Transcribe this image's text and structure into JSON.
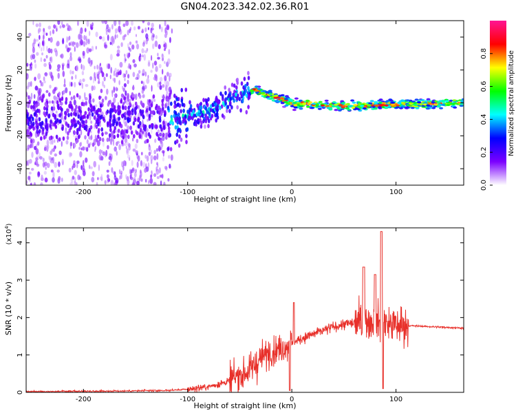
{
  "page": {
    "title": "GN04.2023.342.02.36.R01"
  },
  "chart_data": [
    {
      "type": "heatmap",
      "title": "GN04.2023.342.02.36.R01",
      "xlabel": "Height of straight line (km)",
      "ylabel": "Frequency (Hz)",
      "xlim": [
        -255,
        165
      ],
      "ylim": [
        -50,
        50
      ],
      "x_ticks": [
        -200,
        -100,
        0,
        100
      ],
      "y_ticks": [
        -40,
        -20,
        0,
        20,
        40
      ],
      "colorbar": {
        "label": "Normalized spectral amplitude",
        "range": [
          0,
          1
        ],
        "ticks": [
          "0.0",
          "0.2",
          "0.4",
          "0.6",
          "0.8"
        ],
        "colors": [
          "#ffffff",
          "#7b00ff",
          "#0000ff",
          "#00ffff",
          "#00ff00",
          "#ffff00",
          "#ff0000",
          "#ff1493"
        ]
      },
      "grid": false,
      "description_points": [
        {
          "x": -120,
          "f": -10
        },
        {
          "x": -80,
          "f": -5
        },
        {
          "x": -50,
          "f": 5
        },
        {
          "x": -35,
          "f": 8
        },
        {
          "x": 0,
          "f": 0
        },
        {
          "x": 50,
          "f": -2
        },
        {
          "x": 100,
          "f": -1
        },
        {
          "x": 160,
          "f": 0
        }
      ]
    },
    {
      "type": "line",
      "xlabel": "Height of straight line (km)",
      "ylabel": "SNR (10 * v/v)",
      "y_multiplier": "(x10",
      "y_multiplier_exp": "4",
      "xlim": [
        -255,
        165
      ],
      "ylim": [
        0,
        4.4
      ],
      "x_ticks": [
        -200,
        -100,
        0,
        100
      ],
      "y_ticks": [
        0,
        1,
        2,
        3,
        4
      ],
      "color": "#e8302a",
      "grid": false,
      "series": [
        {
          "x": [
            -255,
            -200,
            -150,
            -120,
            -100,
            -80,
            -60,
            -40,
            -30,
            -20,
            -10,
            0,
            10,
            20,
            30,
            40,
            50,
            60,
            70,
            80,
            90,
            100,
            110,
            115,
            130,
            165
          ],
          "y": [
            0.02,
            0.03,
            0.04,
            0.05,
            0.08,
            0.15,
            0.3,
            0.6,
            0.9,
            1.1,
            1.2,
            1.3,
            1.45,
            1.55,
            1.65,
            1.75,
            1.82,
            1.85,
            1.9,
            1.9,
            1.85,
            1.8,
            1.78,
            1.78,
            1.76,
            1.72
          ]
        }
      ]
    }
  ]
}
